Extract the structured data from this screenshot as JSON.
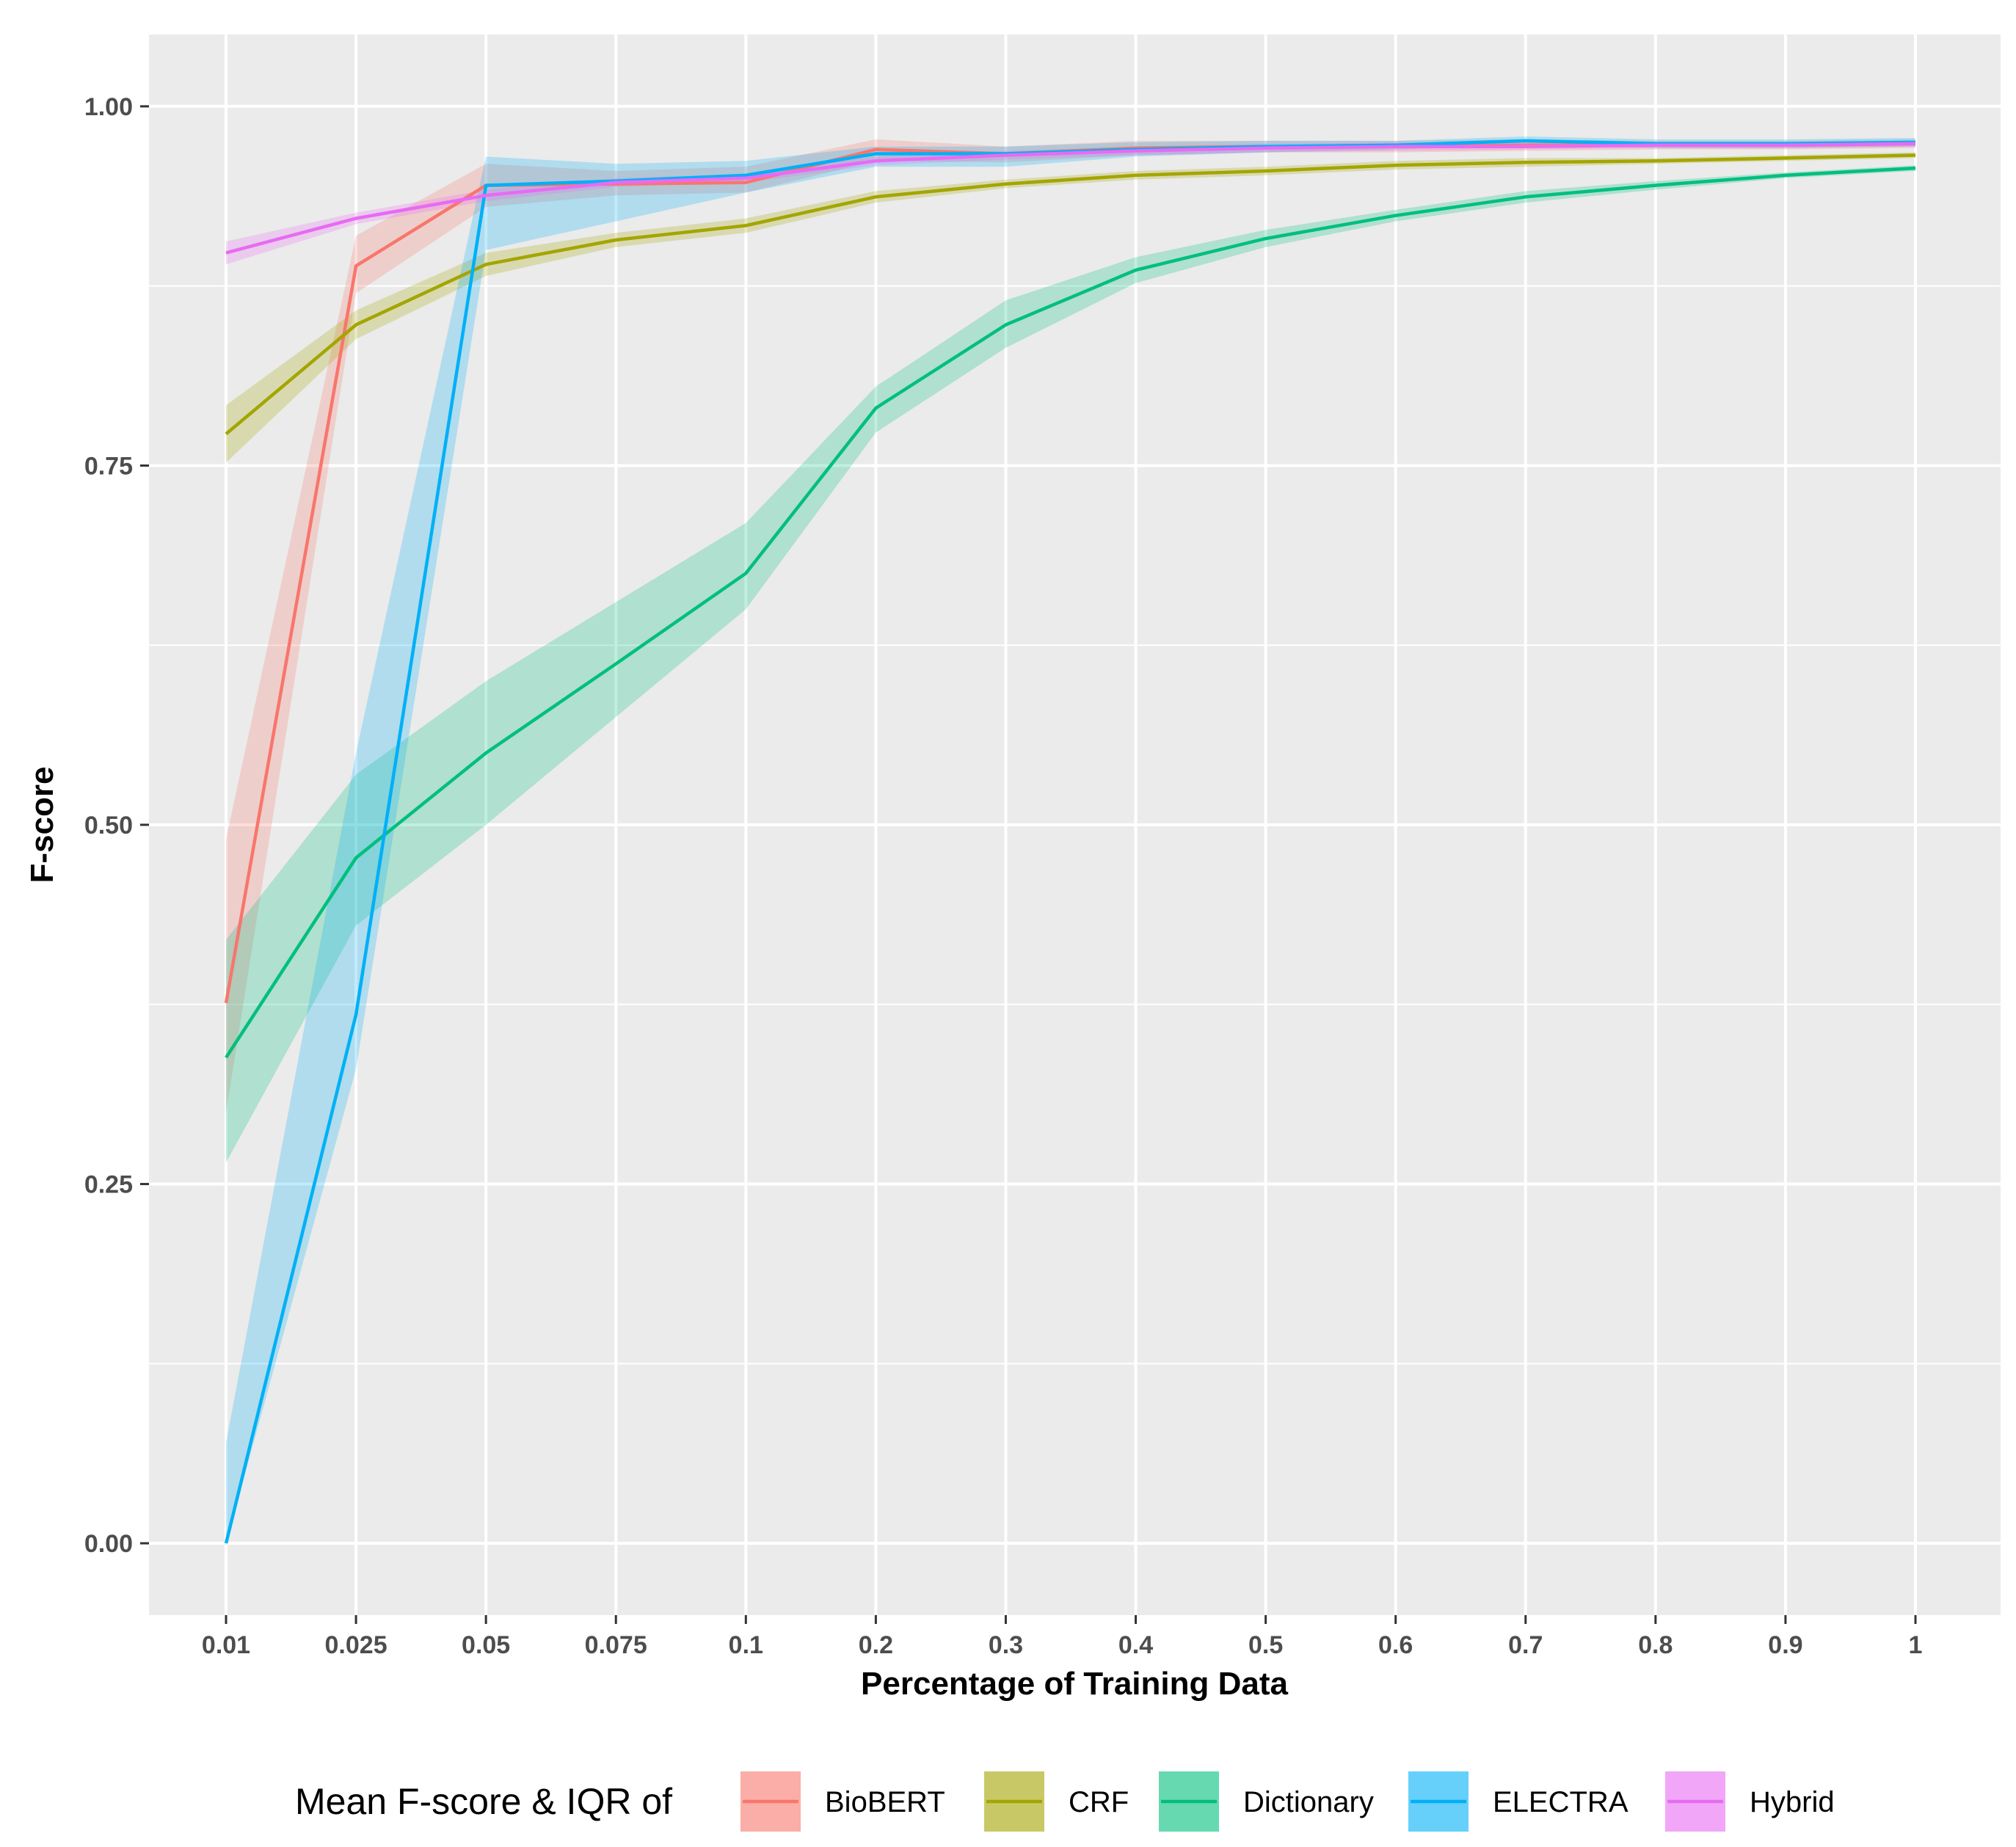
{
  "chart_data": {
    "type": "line",
    "xlabel": "Percentage of Training Data",
    "ylabel": "F-score",
    "categories": [
      "0.01",
      "0.025",
      "0.05",
      "0.075",
      "0.1",
      "0.2",
      "0.3",
      "0.4",
      "0.5",
      "0.6",
      "0.7",
      "0.8",
      "0.9",
      "1"
    ],
    "ylim": [
      -0.05,
      1.05
    ],
    "yticks": [
      0.0,
      0.25,
      0.5,
      0.75,
      1.0
    ],
    "ytick_labels": [
      "0.00",
      "0.25",
      "0.50",
      "0.75",
      "1.00"
    ],
    "grid": true,
    "legend": {
      "title": "Mean F-score & IQR of",
      "position": "bottom"
    },
    "series": [
      {
        "name": "BioBERT",
        "color": "#F8766D",
        "values": [
          0.376,
          0.889,
          0.945,
          0.946,
          0.947,
          0.97,
          0.967,
          0.971,
          0.972,
          0.972,
          0.973,
          0.973,
          0.973,
          0.974
        ],
        "lower": [
          0.3,
          0.87,
          0.93,
          0.938,
          0.94,
          0.962,
          0.961,
          0.966,
          0.968,
          0.968,
          0.969,
          0.97,
          0.97,
          0.971
        ],
        "upper": [
          0.49,
          0.91,
          0.96,
          0.955,
          0.958,
          0.977,
          0.972,
          0.976,
          0.976,
          0.976,
          0.977,
          0.976,
          0.976,
          0.977
        ]
      },
      {
        "name": "CRF",
        "color": "#A3A500",
        "values": [
          0.772,
          0.848,
          0.89,
          0.907,
          0.917,
          0.937,
          0.946,
          0.952,
          0.955,
          0.959,
          0.961,
          0.962,
          0.964,
          0.966
        ],
        "lower": [
          0.752,
          0.838,
          0.882,
          0.902,
          0.912,
          0.933,
          0.943,
          0.949,
          0.952,
          0.956,
          0.958,
          0.96,
          0.962,
          0.964
        ],
        "upper": [
          0.792,
          0.858,
          0.898,
          0.912,
          0.922,
          0.941,
          0.949,
          0.955,
          0.958,
          0.962,
          0.964,
          0.964,
          0.966,
          0.968
        ]
      },
      {
        "name": "Dictionary",
        "color": "#00BF7D",
        "values": [
          0.338,
          0.477,
          0.55,
          0.612,
          0.675,
          0.79,
          0.848,
          0.886,
          0.908,
          0.924,
          0.937,
          0.945,
          0.952,
          0.957
        ],
        "lower": [
          0.265,
          0.43,
          0.5,
          0.575,
          0.65,
          0.773,
          0.832,
          0.877,
          0.902,
          0.92,
          0.933,
          0.942,
          0.95,
          0.955
        ],
        "upper": [
          0.42,
          0.535,
          0.6,
          0.655,
          0.71,
          0.805,
          0.865,
          0.895,
          0.914,
          0.928,
          0.941,
          0.948,
          0.954,
          0.959
        ]
      },
      {
        "name": "ELECTRA",
        "color": "#00B0F6",
        "values": [
          0.0,
          0.368,
          0.945,
          0.948,
          0.952,
          0.967,
          0.967,
          0.97,
          0.972,
          0.973,
          0.976,
          0.974,
          0.974,
          0.975
        ],
        "lower": [
          0.0,
          0.33,
          0.9,
          0.92,
          0.94,
          0.958,
          0.958,
          0.965,
          0.968,
          0.97,
          0.973,
          0.971,
          0.971,
          0.972
        ],
        "upper": [
          0.07,
          0.55,
          0.965,
          0.96,
          0.962,
          0.972,
          0.972,
          0.975,
          0.976,
          0.976,
          0.979,
          0.977,
          0.977,
          0.978
        ]
      },
      {
        "name": "Hybrid",
        "color": "#E76BF3",
        "values": [
          0.898,
          0.922,
          0.938,
          0.947,
          0.95,
          0.962,
          0.966,
          0.969,
          0.971,
          0.972,
          0.972,
          0.973,
          0.973,
          0.974
        ],
        "lower": [
          0.89,
          0.918,
          0.934,
          0.944,
          0.947,
          0.959,
          0.963,
          0.966,
          0.968,
          0.969,
          0.97,
          0.971,
          0.971,
          0.972
        ],
        "upper": [
          0.906,
          0.926,
          0.942,
          0.95,
          0.953,
          0.965,
          0.969,
          0.972,
          0.974,
          0.975,
          0.975,
          0.975,
          0.975,
          0.976
        ]
      }
    ]
  }
}
